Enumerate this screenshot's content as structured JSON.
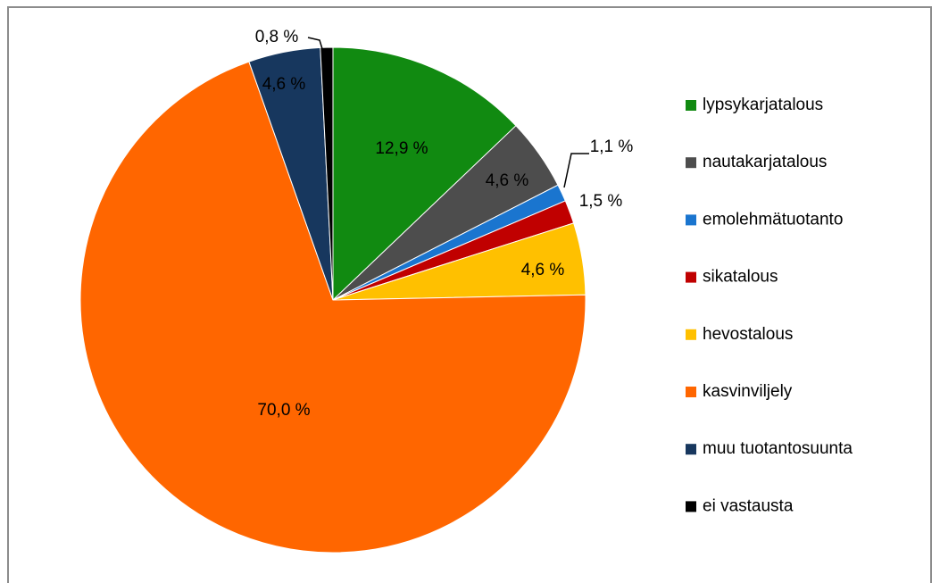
{
  "chart_data": {
    "type": "pie",
    "categories": [
      "lypsykarjatalous",
      "nautakarjatalous",
      "emolehmätuotanto",
      "sikatalous",
      "hevostalous",
      "kasvinviljely",
      "muu tuotantosuunta",
      "ei vastausta"
    ],
    "values": [
      12.9,
      4.6,
      1.1,
      1.5,
      4.6,
      70.0,
      4.6,
      0.8
    ],
    "value_labels": [
      "12,9 %",
      "4,6 %",
      "1,1 %",
      "1,5 %",
      "4,6 %",
      "70,0 %",
      "4,6 %",
      "0,8 %"
    ],
    "colors": [
      "#118a11",
      "#4d4d4d",
      "#1a75cf",
      "#c00000",
      "#ffc000",
      "#ff6600",
      "#17375e",
      "#000000"
    ],
    "legend": "right"
  }
}
